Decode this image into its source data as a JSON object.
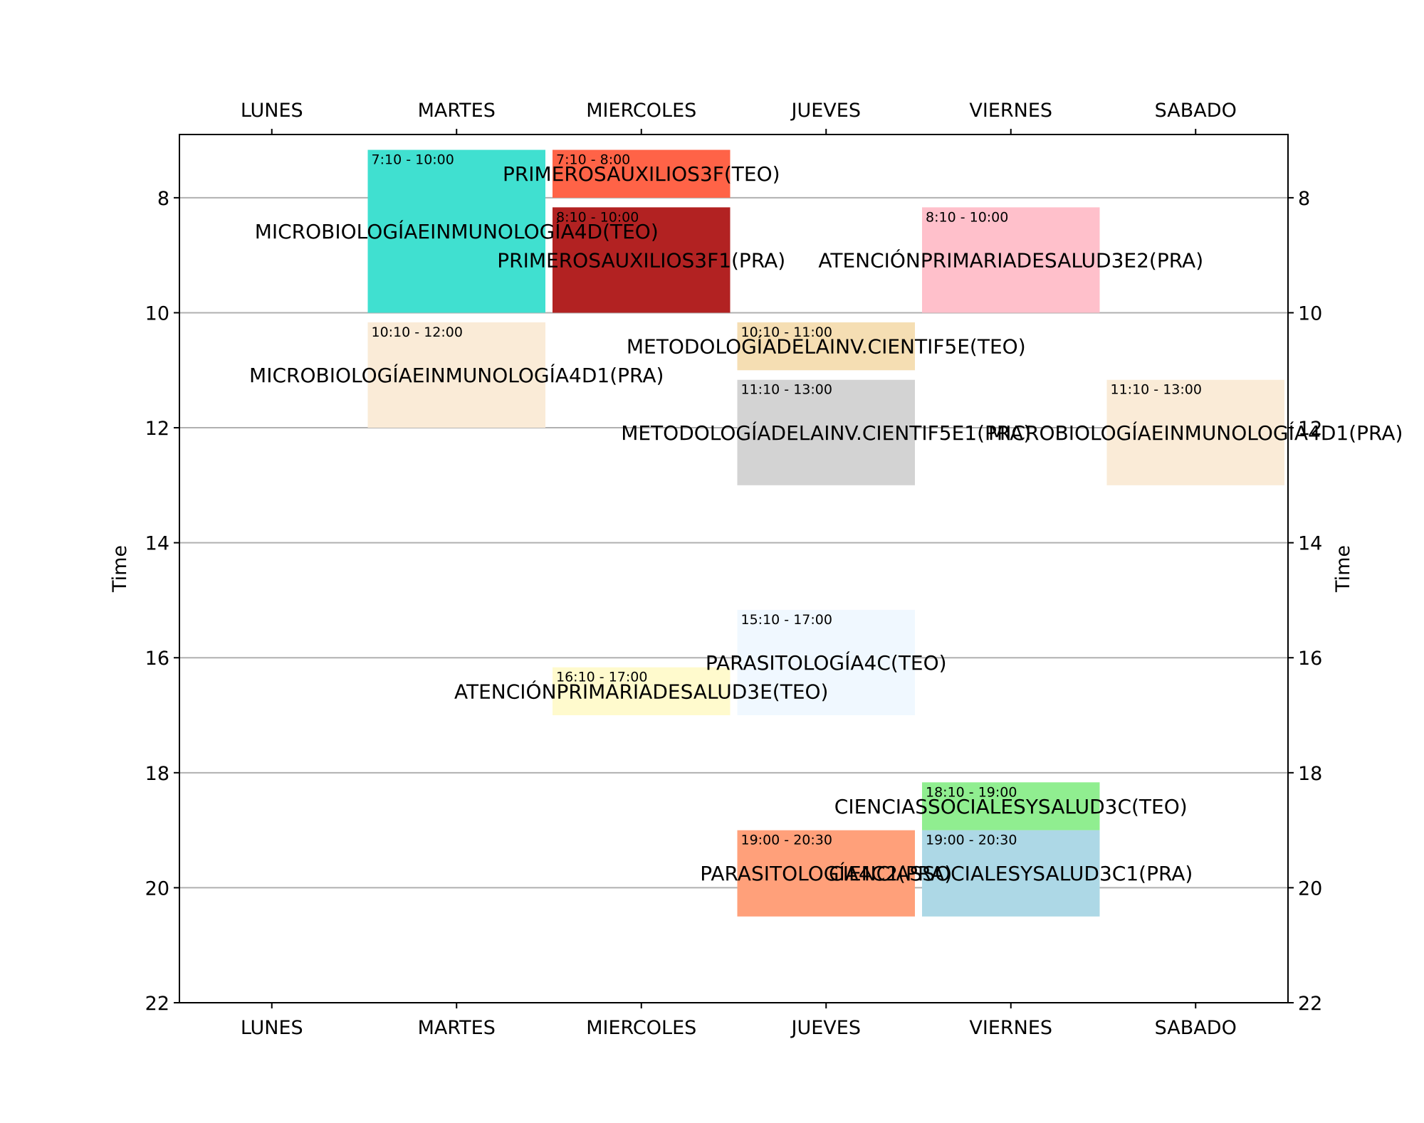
{
  "chart_data": {
    "type": "timetable",
    "days": [
      "LUNES",
      "MARTES",
      "MIERCOLES",
      "JUEVES",
      "VIERNES",
      "SABADO"
    ],
    "ylabel": "Time",
    "ylim": [
      22,
      6.9
    ],
    "yticks": [
      8,
      10,
      12,
      14,
      16,
      18,
      20,
      22
    ],
    "grid": "horizontal",
    "events": [
      {
        "day": "MARTES",
        "start": 7.1667,
        "end": 10,
        "time": "7:10 - 10:00",
        "name": "MICROBIOLOGÍAEINMUNOLOGÍA4D(TEO)",
        "color": "#40e0d0"
      },
      {
        "day": "MIERCOLES",
        "start": 7.1667,
        "end": 8,
        "time": "7:10 - 8:00",
        "name": "PRIMEROSAUXILIOS3F(TEO)",
        "color": "#ff6347"
      },
      {
        "day": "MIERCOLES",
        "start": 8.1667,
        "end": 10,
        "time": "8:10 - 10:00",
        "name": "PRIMEROSAUXILIOS3F1(PRA)",
        "color": "#b22222"
      },
      {
        "day": "VIERNES",
        "start": 8.1667,
        "end": 10,
        "time": "8:10 - 10:00",
        "name": "ATENCIÓNPRIMARIADESALUD3E2(PRA)",
        "color": "#ffc0cb"
      },
      {
        "day": "MARTES",
        "start": 10.1667,
        "end": 12,
        "time": "10:10 - 12:00",
        "name": "MICROBIOLOGÍAEINMUNOLOGÍA4D1(PRA)",
        "color": "#faebd7"
      },
      {
        "day": "JUEVES",
        "start": 10.1667,
        "end": 11,
        "time": "10:10 - 11:00",
        "name": "METODOLOGÍADELAINV.CIENTIF5E(TEO)",
        "color": "#f5deb3"
      },
      {
        "day": "JUEVES",
        "start": 11.1667,
        "end": 13,
        "time": "11:10 - 13:00",
        "name": "METODOLOGÍADELAINV.CIENTIF5E1(PRA)",
        "color": "#d3d3d3"
      },
      {
        "day": "SABADO",
        "start": 11.1667,
        "end": 13,
        "time": "11:10 - 13:00",
        "name": "MICROBIOLOGÍAEINMUNOLOGÍA4D1(PRA)",
        "color": "#faebd7"
      },
      {
        "day": "JUEVES",
        "start": 15.1667,
        "end": 17,
        "time": "15:10 - 17:00",
        "name": "PARASITOLOGÍA4C(TEO)",
        "color": "#f0f8ff"
      },
      {
        "day": "MIERCOLES",
        "start": 16.1667,
        "end": 17,
        "time": "16:10 - 17:00",
        "name": "ATENCIÓNPRIMARIADESALUD3E(TEO)",
        "color": "#fffacd"
      },
      {
        "day": "VIERNES",
        "start": 18.1667,
        "end": 19,
        "time": "18:10 - 19:00",
        "name": "CIENCIASSOCIALESYSALUD3C(TEO)",
        "color": "#90ee90"
      },
      {
        "day": "JUEVES",
        "start": 19,
        "end": 20.5,
        "time": "19:00 - 20:30",
        "name": "PARASITOLOGÍA4C2(PRA)",
        "color": "#ffa07a"
      },
      {
        "day": "VIERNES",
        "start": 19,
        "end": 20.5,
        "time": "19:00 - 20:30",
        "name": "CIENCIASSOCIALESYSALUD3C1(PRA)",
        "color": "#add8e6"
      }
    ]
  }
}
